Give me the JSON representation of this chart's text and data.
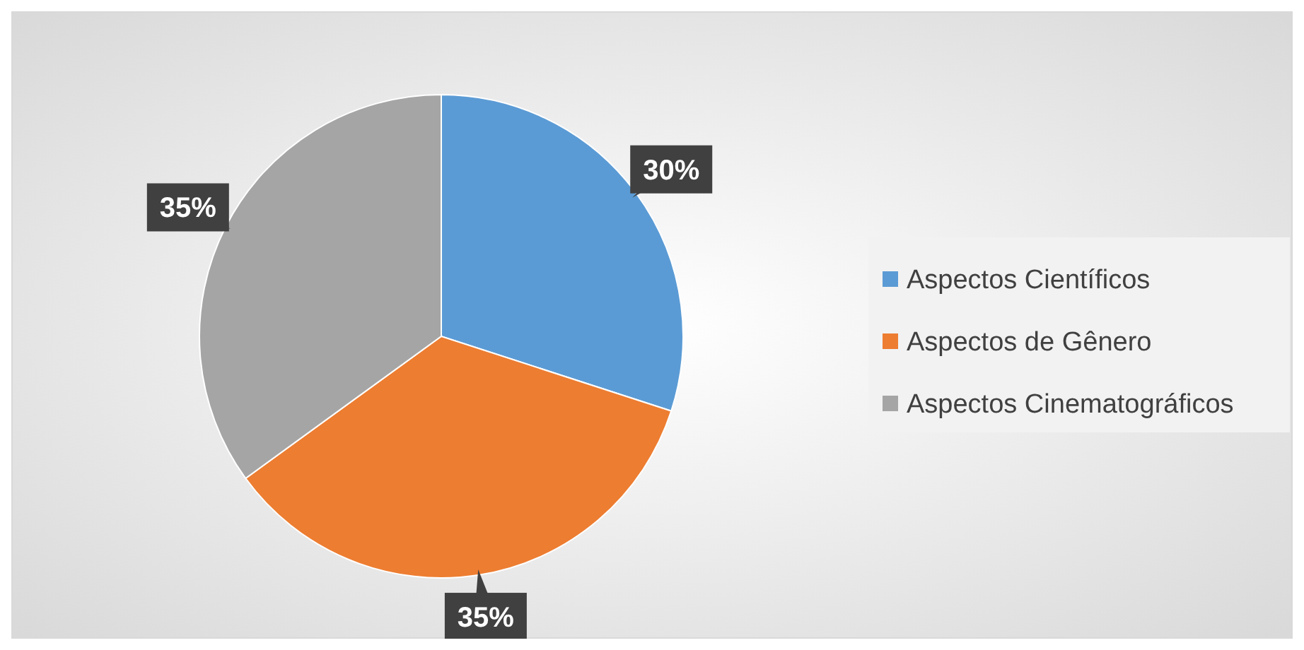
{
  "chart_data": {
    "type": "pie",
    "categories": [
      "Aspectos Científicos",
      "Aspectos de Gênero",
      "Aspectos Cinematográficos"
    ],
    "values": [
      30,
      35,
      35
    ],
    "colors": [
      "#5b9bd5",
      "#ed7d31",
      "#a5a5a5"
    ],
    "value_labels": [
      "30%",
      "35%",
      "35%"
    ],
    "legend": "right"
  }
}
